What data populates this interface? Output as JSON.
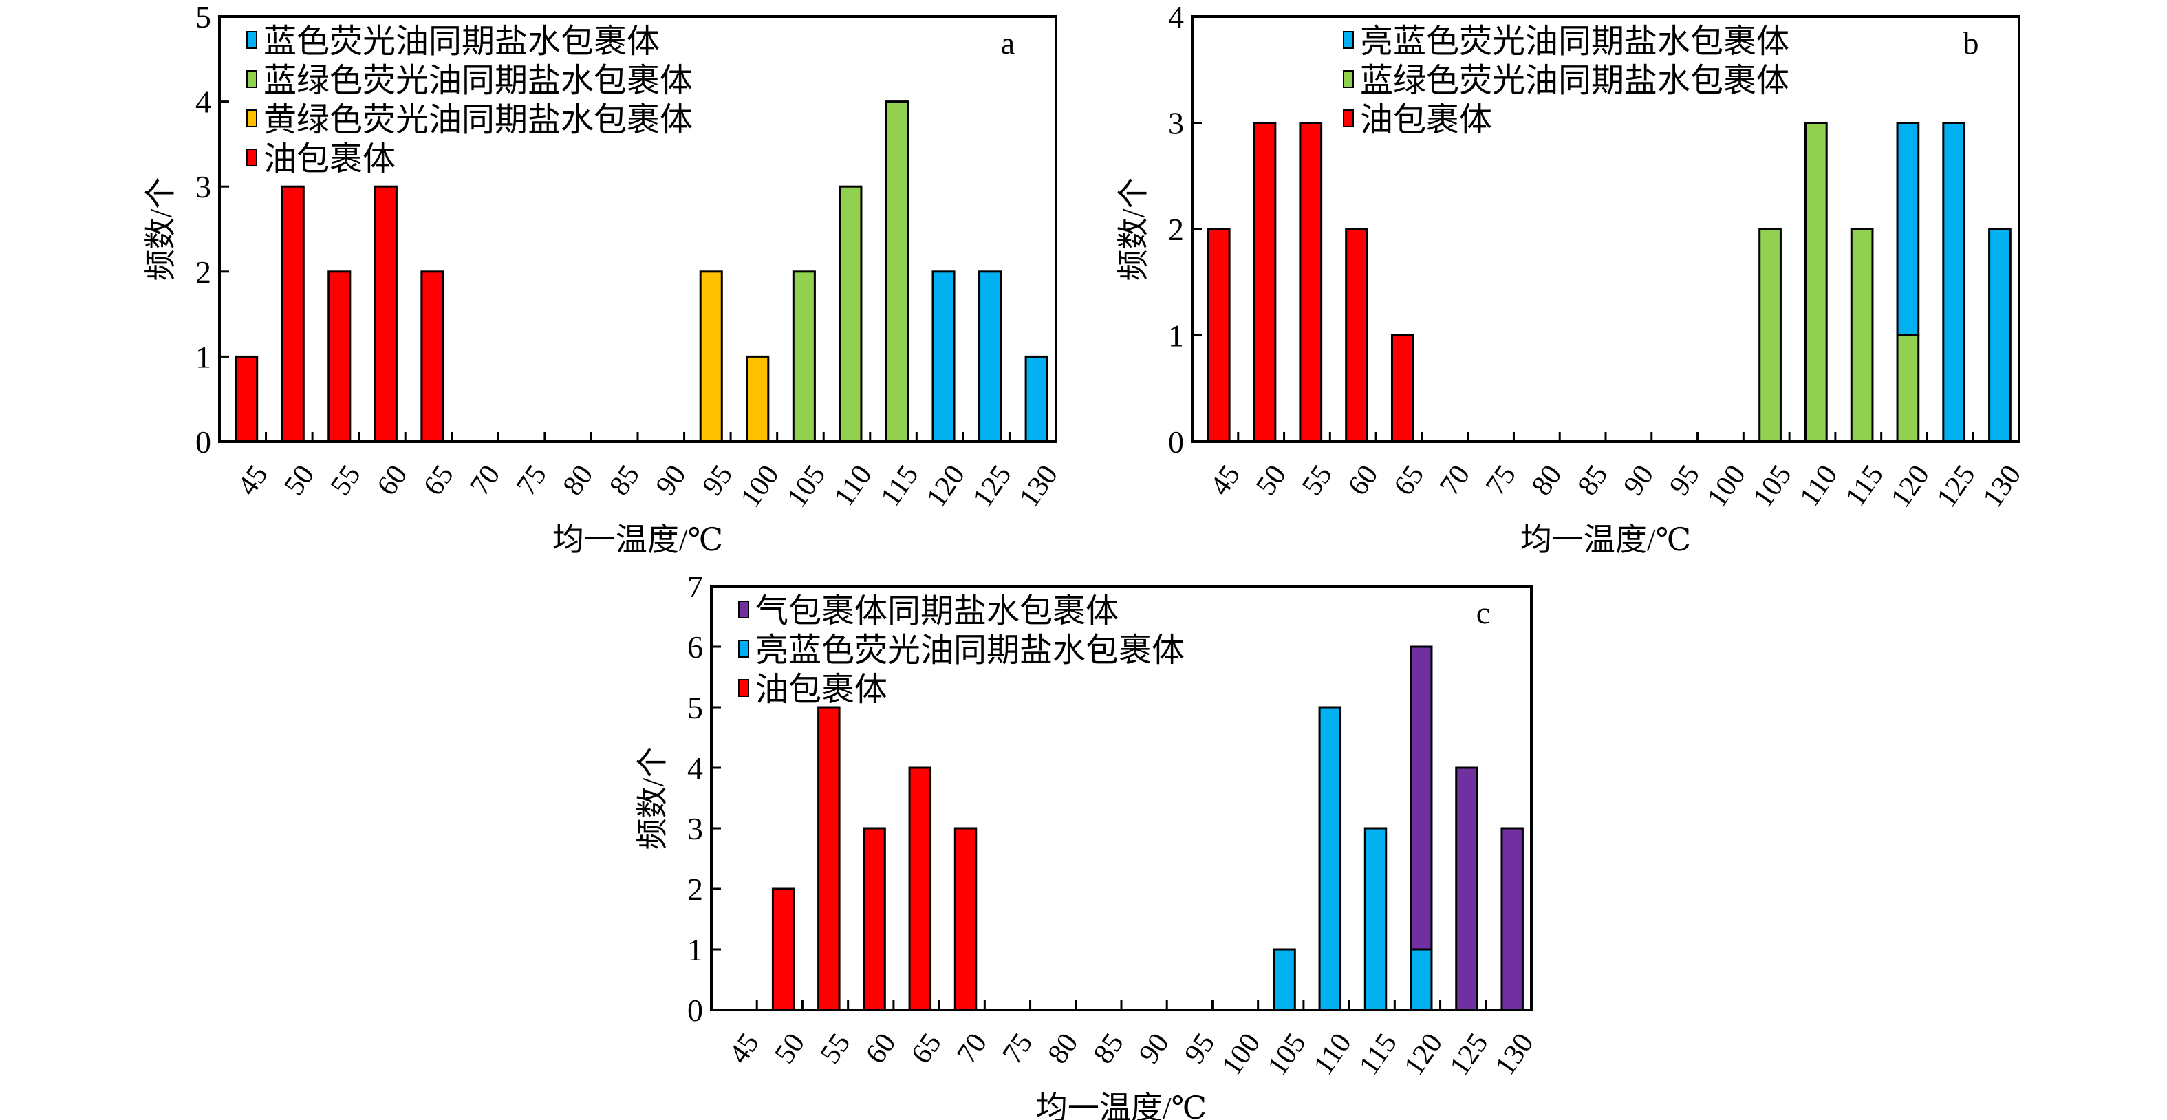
{
  "colors": {
    "blue": "#00b0f0",
    "green": "#92d050",
    "yellow": "#ffc000",
    "red": "#ff0000",
    "purple": "#7030a0"
  },
  "chart_data": [
    {
      "type": "bar",
      "panel": "a",
      "xlabel": "均一温度/℃",
      "ylabel": "频数/个",
      "ylim": [
        0,
        5
      ],
      "yticks": [
        0,
        1,
        2,
        3,
        4,
        5
      ],
      "categories": [
        "45",
        "50",
        "55",
        "60",
        "65",
        "70",
        "75",
        "80",
        "85",
        "90",
        "95",
        "100",
        "105",
        "110",
        "115",
        "120",
        "125",
        "130"
      ],
      "legend_position": "top-left",
      "series": [
        {
          "name": "蓝色荧光油同期盐水包裹体",
          "color": "#00b0f0",
          "values": [
            0,
            0,
            0,
            0,
            0,
            0,
            0,
            0,
            0,
            0,
            0,
            0,
            0,
            0,
            0,
            2,
            2,
            1
          ]
        },
        {
          "name": "蓝绿色荧光油同期盐水包裹体",
          "color": "#92d050",
          "values": [
            0,
            0,
            0,
            0,
            0,
            0,
            0,
            0,
            0,
            0,
            0,
            0,
            2,
            3,
            4,
            0,
            0,
            0
          ]
        },
        {
          "name": "黄绿色荧光油同期盐水包裹体",
          "color": "#ffc000",
          "values": [
            0,
            0,
            0,
            0,
            0,
            0,
            0,
            0,
            0,
            0,
            2,
            1,
            0,
            0,
            0,
            0,
            0,
            0
          ]
        },
        {
          "name": "油包裹体",
          "color": "#ff0000",
          "values": [
            1,
            3,
            2,
            3,
            2,
            0,
            0,
            0,
            0,
            0,
            0,
            0,
            0,
            0,
            0,
            0,
            0,
            0
          ]
        }
      ]
    },
    {
      "type": "bar",
      "panel": "b",
      "xlabel": "均一温度/℃",
      "ylabel": "频数/个",
      "ylim": [
        0,
        4
      ],
      "yticks": [
        0,
        1,
        2,
        3,
        4
      ],
      "categories": [
        "45",
        "50",
        "55",
        "60",
        "65",
        "70",
        "75",
        "80",
        "85",
        "90",
        "95",
        "100",
        "105",
        "110",
        "115",
        "120",
        "125",
        "130"
      ],
      "legend_position": "top-left",
      "stack_order": [
        2,
        1,
        0
      ],
      "series": [
        {
          "name": "亮蓝色荧光油同期盐水包裹体",
          "color": "#00b0f0",
          "values": [
            0,
            0,
            0,
            0,
            0,
            0,
            0,
            0,
            0,
            0,
            0,
            0,
            0,
            0,
            0,
            2,
            3,
            2
          ]
        },
        {
          "name": "蓝绿色荧光油同期盐水包裹体",
          "color": "#92d050",
          "values": [
            0,
            0,
            0,
            0,
            0,
            0,
            0,
            0,
            0,
            0,
            0,
            0,
            2,
            3,
            2,
            1,
            0,
            0
          ]
        },
        {
          "name": "油包裹体",
          "color": "#ff0000",
          "values": [
            2,
            3,
            3,
            2,
            1,
            0,
            0,
            0,
            0,
            0,
            0,
            0,
            0,
            0,
            0,
            0,
            0,
            0
          ]
        }
      ]
    },
    {
      "type": "bar",
      "panel": "c",
      "xlabel": "均一温度/℃",
      "ylabel": "频数/个",
      "ylim": [
        0,
        7
      ],
      "yticks": [
        0,
        1,
        2,
        3,
        4,
        5,
        6,
        7
      ],
      "categories": [
        "45",
        "50",
        "55",
        "60",
        "65",
        "70",
        "75",
        "80",
        "85",
        "90",
        "95",
        "100",
        "105",
        "110",
        "115",
        "120",
        "125",
        "130"
      ],
      "legend_position": "top-left",
      "stack_order": [
        2,
        1,
        0
      ],
      "series": [
        {
          "name": "气包裹体同期盐水包裹体",
          "color": "#7030a0",
          "values": [
            0,
            0,
            0,
            0,
            0,
            0,
            0,
            0,
            0,
            0,
            0,
            0,
            0,
            0,
            0,
            5,
            4,
            3
          ]
        },
        {
          "name": "亮蓝色荧光油同期盐水包裹体",
          "color": "#00b0f0",
          "values": [
            0,
            0,
            0,
            0,
            0,
            0,
            0,
            0,
            0,
            0,
            0,
            0,
            1,
            5,
            3,
            1,
            0,
            0
          ]
        },
        {
          "name": "油包裹体",
          "color": "#ff0000",
          "values": [
            0,
            2,
            5,
            3,
            4,
            3,
            0,
            0,
            0,
            0,
            0,
            0,
            0,
            0,
            0,
            0,
            0,
            0
          ]
        }
      ]
    }
  ]
}
